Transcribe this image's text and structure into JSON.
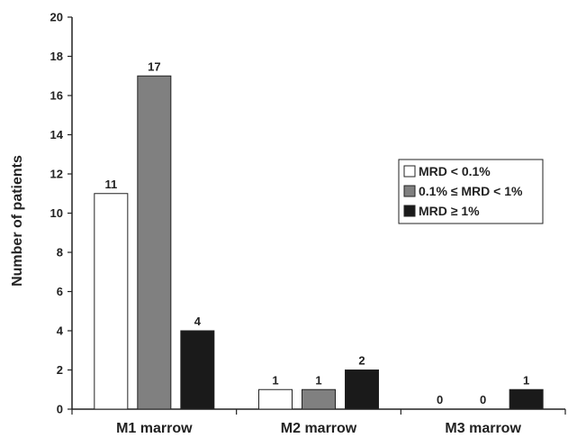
{
  "chart_data": {
    "type": "bar",
    "ylabel": "Number of patients",
    "xlabel": "",
    "ylim": [
      0,
      20
    ],
    "yticks": [
      0,
      2,
      4,
      6,
      8,
      10,
      12,
      14,
      16,
      18,
      20
    ],
    "categories": [
      "M1 marrow",
      "M2 marrow",
      "M3 marrow"
    ],
    "series": [
      {
        "name": "MRD < 0.1%",
        "color": "#ffffff",
        "values": [
          11,
          1,
          0
        ]
      },
      {
        "name": "0.1% ≤ MRD < 1%",
        "color": "#808080",
        "values": [
          17,
          1,
          0
        ]
      },
      {
        "name": "MRD ≥ 1%",
        "color": "#1a1a1a",
        "values": [
          4,
          2,
          1
        ]
      }
    ],
    "legend_position": "right",
    "grid": false
  }
}
